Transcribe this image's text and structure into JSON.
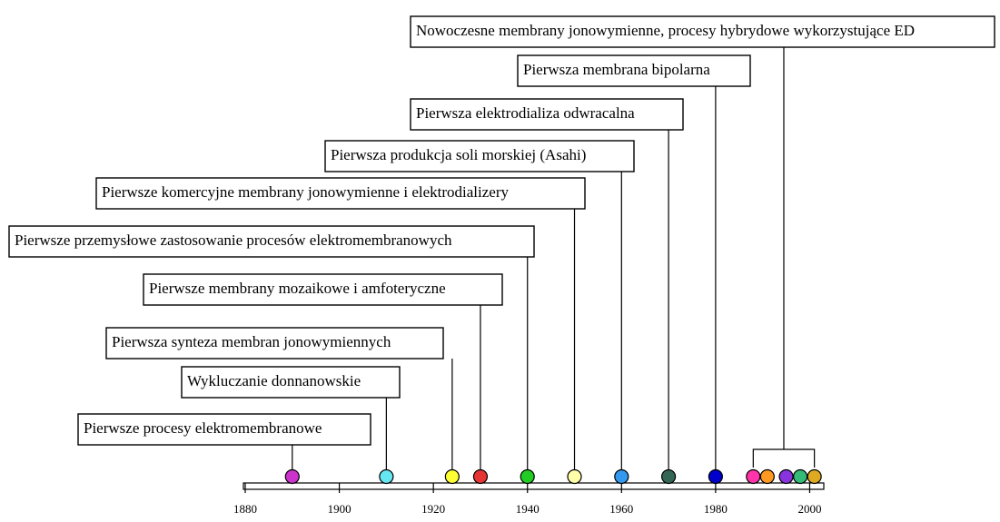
{
  "chart_data": {
    "type": "timeline",
    "xlim": [
      1880,
      2003
    ],
    "xticks": [
      1880,
      1900,
      1920,
      1940,
      1960,
      1980,
      2000
    ],
    "events": [
      {
        "label": "Pierwsze procesy elektromembranowe",
        "years": [
          1890
        ],
        "colors": [
          "#cc33cc"
        ]
      },
      {
        "label": "Wykluczanie donnanowskie",
        "years": [
          1910
        ],
        "colors": [
          "#66e6f0"
        ]
      },
      {
        "label": "Pierwsza synteza membran jonowymiennych",
        "years": [
          1924
        ],
        "colors": [
          "#ffff33"
        ]
      },
      {
        "label": "Pierwsze membrany mozaikowe i amfoteryczne",
        "years": [
          1930
        ],
        "colors": [
          "#e63333"
        ]
      },
      {
        "label": "Pierwsze przemysłowe zastosowanie procesów elektromembranowych",
        "years": [
          1940
        ],
        "colors": [
          "#22cc22"
        ]
      },
      {
        "label": "Pierwsze komercyjne membrany jonowymienne i elektrodializery",
        "years": [
          1950
        ],
        "colors": [
          "#ffffaa"
        ]
      },
      {
        "label": "Pierwsza produkcja soli morskiej (Asahi)",
        "years": [
          1960
        ],
        "colors": [
          "#3399ee"
        ]
      },
      {
        "label": "Pierwsza elektrodializa odwracalna",
        "years": [
          1970
        ],
        "colors": [
          "#336655"
        ]
      },
      {
        "label": "Pierwsza membrana bipolarna",
        "years": [
          1980
        ],
        "colors": [
          "#0000cc"
        ]
      },
      {
        "label": "Nowoczesne membrany jonowymienne, procesy hybrydowe wykorzystujące ED",
        "years": [
          1988,
          1991,
          1995,
          1998,
          2001
        ],
        "colors": [
          "#ff33aa",
          "#ff9922",
          "#8833dd",
          "#33bb77",
          "#ddaa22"
        ]
      }
    ]
  }
}
